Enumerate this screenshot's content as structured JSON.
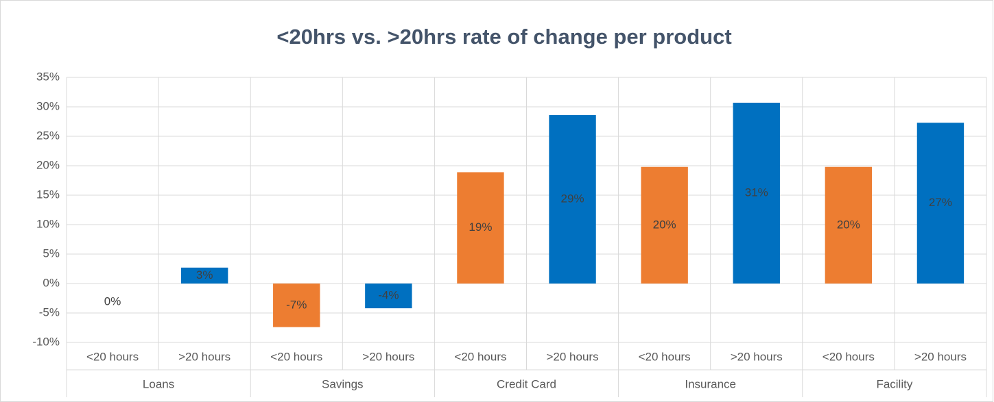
{
  "chart_data": {
    "type": "bar",
    "title": "<20hrs vs. >20hrs rate of change per product",
    "groups": [
      "Loans",
      "Savings",
      "Credit Card",
      "Insurance",
      "Facility"
    ],
    "categories": [
      "<20 hours",
      ">20 hours",
      "<20 hours",
      ">20 hours",
      "<20 hours",
      ">20 hours",
      "<20 hours",
      ">20 hours",
      "<20 hours",
      ">20 hours"
    ],
    "values": [
      0,
      2.7,
      -7.4,
      -4.2,
      18.9,
      28.6,
      19.8,
      30.7,
      19.8,
      27.3
    ],
    "value_labels": [
      "0%",
      "3%",
      "-7%",
      "-4%",
      "19%",
      "29%",
      "20%",
      "31%",
      "20%",
      "27%"
    ],
    "colors": [
      "#ed7d31",
      "#0070c0",
      "#ed7d31",
      "#0070c0",
      "#ed7d31",
      "#0070c0",
      "#ed7d31",
      "#0070c0",
      "#ed7d31",
      "#0070c0"
    ],
    "ylim": [
      -10,
      35
    ],
    "yticks": [
      {
        "value": -10,
        "label": "-10%"
      },
      {
        "value": -5,
        "label": "-5%"
      },
      {
        "value": 0,
        "label": "0%"
      },
      {
        "value": 5,
        "label": "5%"
      },
      {
        "value": 10,
        "label": "10%"
      },
      {
        "value": 15,
        "label": "15%"
      },
      {
        "value": 20,
        "label": "20%"
      },
      {
        "value": 25,
        "label": "25%"
      },
      {
        "value": 30,
        "label": "30%"
      },
      {
        "value": 35,
        "label": "35%"
      }
    ],
    "grid": true
  }
}
